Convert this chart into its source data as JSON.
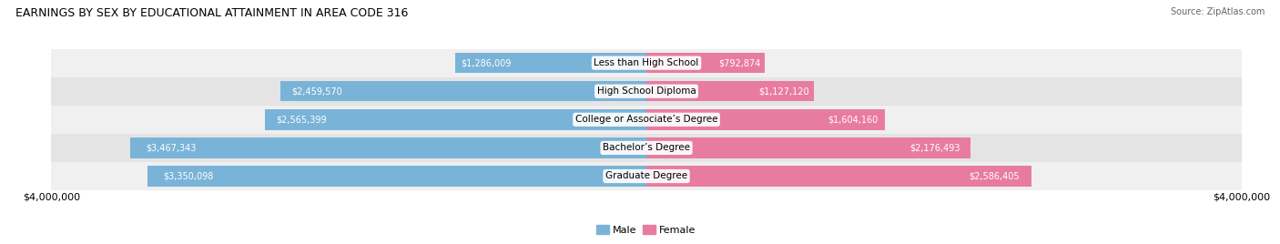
{
  "title": "EARNINGS BY SEX BY EDUCATIONAL ATTAINMENT IN AREA CODE 316",
  "source": "Source: ZipAtlas.com",
  "categories": [
    "Less than High School",
    "High School Diploma",
    "College or Associate’s Degree",
    "Bachelor’s Degree",
    "Graduate Degree"
  ],
  "male_values": [
    1286009,
    2459570,
    2565399,
    3467343,
    3350098
  ],
  "female_values": [
    792874,
    1127120,
    1604160,
    2176493,
    2586405
  ],
  "male_labels": [
    "$1,286,009",
    "$2,459,570",
    "$2,565,399",
    "$3,467,343",
    "$3,350,098"
  ],
  "female_labels": [
    "$792,874",
    "$1,127,120",
    "$1,604,160",
    "$2,176,493",
    "$2,586,405"
  ],
  "male_color": "#7ab3d8",
  "female_color": "#e87ca0",
  "row_bg_colors": [
    "#f0f0f0",
    "#e4e4e4"
  ],
  "xlim": 4000000,
  "legend_male": "Male",
  "legend_female": "Female",
  "xlabel_left": "$4,000,000",
  "xlabel_right": "$4,000,000",
  "title_fontsize": 9,
  "bar_height": 0.72
}
